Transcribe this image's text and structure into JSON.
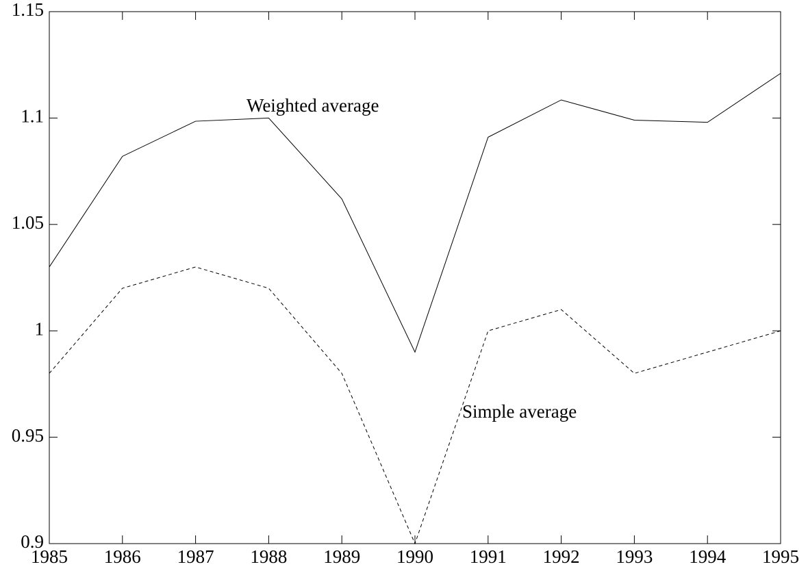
{
  "chart_data": {
    "type": "line",
    "x": [
      1985,
      1986,
      1987,
      1988,
      1989,
      1990,
      1991,
      1992,
      1993,
      1994,
      1995
    ],
    "series": [
      {
        "name": "Weighted average",
        "color": "#000000",
        "dash": false,
        "values": [
          1.03,
          1.082,
          1.0985,
          1.1,
          1.062,
          0.99,
          1.091,
          1.1085,
          1.099,
          1.098,
          1.121
        ]
      },
      {
        "name": "Simple average",
        "color": "#000000",
        "dash": true,
        "values": [
          0.98,
          1.02,
          1.03,
          1.02,
          0.98,
          0.9,
          1.0,
          1.01,
          0.98,
          0.99,
          1.0
        ]
      }
    ],
    "xlim": [
      1985,
      1995
    ],
    "xticks": [
      1985,
      1986,
      1987,
      1988,
      1989,
      1990,
      1991,
      1992,
      1993,
      1994,
      1995
    ],
    "ylim": [
      0.9,
      1.15
    ],
    "yticks": [
      0.9,
      0.95,
      1,
      1.05,
      1.1,
      1.15
    ]
  }
}
